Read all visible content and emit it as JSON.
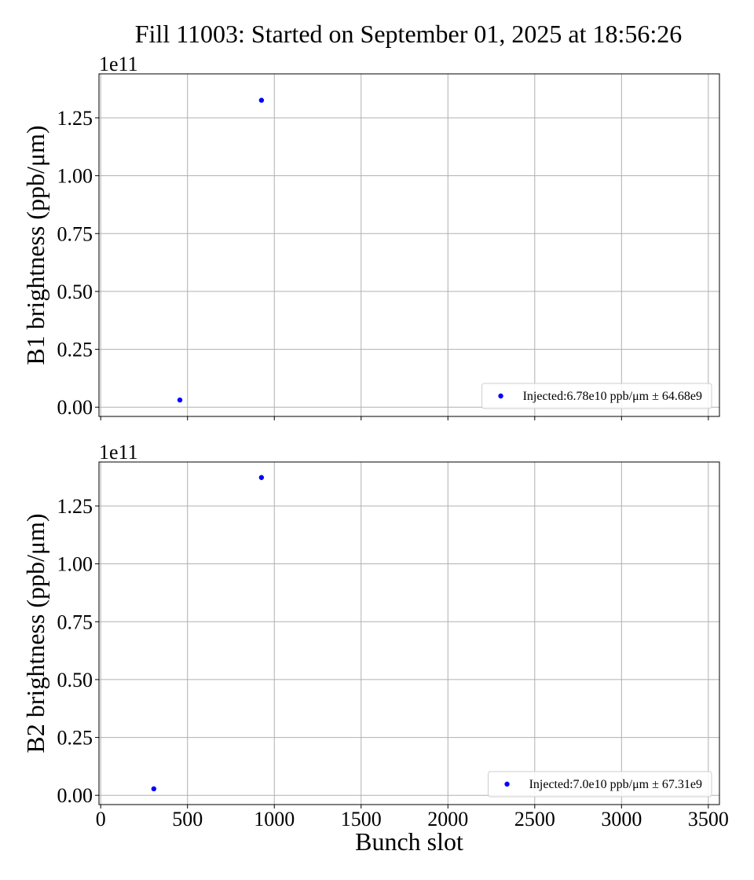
{
  "figure": {
    "title": "Fill 11003: Started on September 01, 2025 at 18:56:26"
  },
  "chart_data": [
    {
      "type": "scatter",
      "title": "",
      "xlabel": "",
      "ylabel": "B1 brightness (ppb/μm)",
      "y_offset_label": "1e11",
      "xlim": [
        -10,
        3564
      ],
      "ylim": [
        -4000000000.0,
        144000000000.0
      ],
      "xticks": [
        0,
        500,
        1000,
        1500,
        2000,
        2500,
        3000,
        3500
      ],
      "yticks": [
        0,
        25000000000.0,
        50000000000.0,
        75000000000.0,
        100000000000.0,
        125000000000.0
      ],
      "ytick_labels": [
        "0.00",
        "0.25",
        "0.50",
        "0.75",
        "1.00",
        "1.25"
      ],
      "show_xtick_labels": false,
      "grid": true,
      "legend_position": "lower-right",
      "series": [
        {
          "name": "Injected:6.78e10 ppb/μm ± 64.68e9",
          "color": "#0000ff",
          "x": [
            456,
            926
          ],
          "y": [
            3100000000.0,
            132600000000.0
          ]
        }
      ]
    },
    {
      "type": "scatter",
      "title": "",
      "xlabel": "Bunch slot",
      "ylabel": "B2 brightness (ppb/μm)",
      "y_offset_label": "1e11",
      "xlim": [
        -10,
        3564
      ],
      "ylim": [
        -4000000000.0,
        144000000000.0
      ],
      "xticks": [
        0,
        500,
        1000,
        1500,
        2000,
        2500,
        3000,
        3500
      ],
      "xtick_labels": [
        "0",
        "500",
        "1000",
        "1500",
        "2000",
        "2500",
        "3000",
        "3500"
      ],
      "yticks": [
        0,
        25000000000.0,
        50000000000.0,
        75000000000.0,
        100000000000.0,
        125000000000.0
      ],
      "ytick_labels": [
        "0.00",
        "0.25",
        "0.50",
        "0.75",
        "1.00",
        "1.25"
      ],
      "show_xtick_labels": true,
      "grid": true,
      "legend_position": "lower-right",
      "series": [
        {
          "name": "Injected:7.0e10 ppb/μm ± 67.31e9",
          "color": "#0000ff",
          "x": [
            306,
            926
          ],
          "y": [
            2800000000.0,
            137300000000.0
          ]
        }
      ]
    }
  ]
}
